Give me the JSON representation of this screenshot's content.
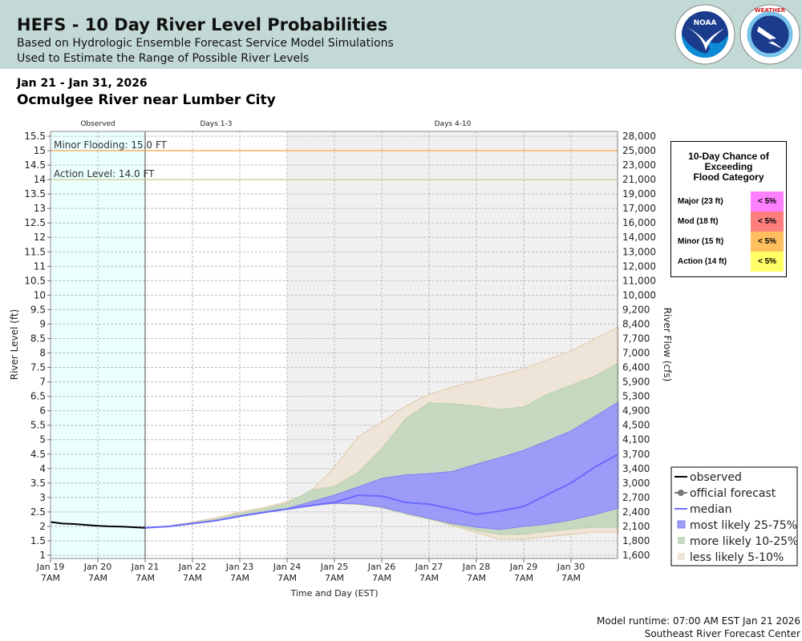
{
  "header": {
    "title": "HEFS - 10 Day River Level Probabilities",
    "line1": "Based on Hydrologic Ensemble Forecast Service Model Simulations",
    "line2": "Used to Estimate the Range of Possible River Levels",
    "logos": [
      "NOAA",
      "NATIONAL WEATHER SERVICE"
    ]
  },
  "date_range": "Jan 21 - Jan 31, 2026",
  "location": "Ocmulgee River near Lumber City",
  "footer": {
    "runtime": "Model runtime: 07:00 AM EST Jan 21 2026",
    "center": "Southeast River Forecast Center"
  },
  "flood_box": {
    "title": [
      "10-Day Chance of",
      "Exceeding",
      "Flood Category"
    ],
    "rows": [
      {
        "label": "Major (23 ft)",
        "value": "< 5%",
        "color": "#ff80ff"
      },
      {
        "label": "Mod (18 ft)",
        "value": "< 5%",
        "color": "#ff7f7f"
      },
      {
        "label": "Minor (15 ft)",
        "value": "< 5%",
        "color": "#ffbf5f"
      },
      {
        "label": "Action (14 ft)",
        "value": "< 5%",
        "color": "#ffff66"
      }
    ]
  },
  "chart_data": {
    "type": "area",
    "xlabel": "Time and Day (EST)",
    "ylabel": "River Level (ft)",
    "y2label": "River Flow (cfs)",
    "ylim": [
      1.0,
      15.5
    ],
    "xlim": [
      "2026-01-19T07",
      "2026-01-31T07"
    ],
    "grid": true,
    "legend": [
      {
        "label": "observed",
        "kind": "line",
        "color": "#000000"
      },
      {
        "label": "official forecast",
        "kind": "dotline",
        "color": "#777777"
      },
      {
        "label": "median",
        "kind": "line",
        "color": "#7070ff"
      },
      {
        "label": "most likely 25-75%",
        "kind": "box",
        "color": "#9c9cf8"
      },
      {
        "label": "more likely 10-25%",
        "kind": "box",
        "color": "#c6d8c0"
      },
      {
        "label": "less likely 5-10%",
        "kind": "box",
        "color": "#eee4d8"
      }
    ],
    "periods": [
      {
        "label": "Observed",
        "start": "2026-01-19T07",
        "end": "2026-01-21T07",
        "color": "#ebffff"
      },
      {
        "label": "Days 1-3",
        "start": "2026-01-21T07",
        "end": "2026-01-24T07",
        "color": "#ffffff"
      },
      {
        "label": "Days 4-10",
        "start": "2026-01-24T07",
        "end": "2026-01-31T07",
        "color": "#f0f0f0"
      }
    ],
    "yticks": [
      15.5,
      15.0,
      14.5,
      14.0,
      13.5,
      13.0,
      12.5,
      12.0,
      11.5,
      11.0,
      10.5,
      10.0,
      9.5,
      9.0,
      8.5,
      8.0,
      7.5,
      7.0,
      6.5,
      6.0,
      5.5,
      5.0,
      4.5,
      4.0,
      3.5,
      3.0,
      2.5,
      2.0,
      1.5,
      1.0
    ],
    "y2ticks": [
      "28,000",
      "25,000",
      "23,000",
      "21,000",
      "19,000",
      "17,000",
      "16,000",
      "14,000",
      "13,000",
      "12,000",
      "11,000",
      "10,000",
      "9,200",
      "8,400",
      "7,700",
      "7,000",
      "6,400",
      "5,900",
      "5,300",
      "4,900",
      "4,500",
      "4,100",
      "3,700",
      "3,400",
      "3,000",
      "2,700",
      "2,400",
      "2,100",
      "1,800",
      "1,600"
    ],
    "xticks": [
      {
        "t": "2026-01-19T07",
        "l1": "Jan 19",
        "l2": "7AM"
      },
      {
        "t": "2026-01-20T07",
        "l1": "Jan 20",
        "l2": "7AM"
      },
      {
        "t": "2026-01-21T07",
        "l1": "Jan 21",
        "l2": "7AM"
      },
      {
        "t": "2026-01-22T07",
        "l1": "Jan 22",
        "l2": "7AM"
      },
      {
        "t": "2026-01-23T07",
        "l1": "Jan 23",
        "l2": "7AM"
      },
      {
        "t": "2026-01-24T07",
        "l1": "Jan 24",
        "l2": "7AM"
      },
      {
        "t": "2026-01-25T07",
        "l1": "Jan 25",
        "l2": "7AM"
      },
      {
        "t": "2026-01-26T07",
        "l1": "Jan 26",
        "l2": "7AM"
      },
      {
        "t": "2026-01-27T07",
        "l1": "Jan 27",
        "l2": "7AM"
      },
      {
        "t": "2026-01-28T07",
        "l1": "Jan 28",
        "l2": "7AM"
      },
      {
        "t": "2026-01-29T07",
        "l1": "Jan 29",
        "l2": "7AM"
      },
      {
        "t": "2026-01-30T07",
        "l1": "Jan 30",
        "l2": "7AM"
      }
    ],
    "thresholds": [
      {
        "label": "Minor Flooding: 15.0 FT",
        "value": 15.0,
        "color": "#ffa040"
      },
      {
        "label": "Action Level: 14.0 FT",
        "value": 14.0,
        "color": "#cccc88"
      }
    ],
    "observed": {
      "t": [
        "2026-01-19T07",
        "2026-01-19T13",
        "2026-01-19T19",
        "2026-01-20T01",
        "2026-01-20T07",
        "2026-01-20T13",
        "2026-01-20T19",
        "2026-01-21T01",
        "2026-01-21T07"
      ],
      "v": [
        2.15,
        2.1,
        2.08,
        2.05,
        2.02,
        2.0,
        1.99,
        1.97,
        1.95
      ]
    },
    "forecast_t": [
      "2026-01-21T07",
      "2026-01-21T19",
      "2026-01-22T07",
      "2026-01-22T19",
      "2026-01-23T07",
      "2026-01-23T19",
      "2026-01-24T07",
      "2026-01-24T19",
      "2026-01-25T07",
      "2026-01-25T19",
      "2026-01-26T07",
      "2026-01-26T19",
      "2026-01-27T07",
      "2026-01-27T19",
      "2026-01-28T07",
      "2026-01-28T19",
      "2026-01-29T07",
      "2026-01-29T19",
      "2026-01-30T07",
      "2026-01-30T19",
      "2026-01-31T07"
    ],
    "median": [
      1.95,
      2.0,
      2.1,
      2.2,
      2.35,
      2.48,
      2.6,
      2.72,
      2.83,
      3.08,
      3.05,
      2.83,
      2.77,
      2.6,
      2.41,
      2.53,
      2.69,
      3.1,
      3.5,
      4.05,
      4.5
    ],
    "p5": [
      1.95,
      2.0,
      2.1,
      2.2,
      2.35,
      2.47,
      2.6,
      2.72,
      2.8,
      2.76,
      2.65,
      2.43,
      2.25,
      2.03,
      1.78,
      1.56,
      1.55,
      1.64,
      1.72,
      1.8,
      1.8
    ],
    "p10": [
      1.95,
      2.0,
      2.1,
      2.2,
      2.35,
      2.47,
      2.6,
      2.72,
      2.8,
      2.76,
      2.65,
      2.43,
      2.25,
      2.05,
      1.86,
      1.72,
      1.72,
      1.83,
      1.91,
      1.97,
      1.97
    ],
    "p25": [
      1.95,
      2.0,
      2.1,
      2.2,
      2.35,
      2.47,
      2.6,
      2.72,
      2.8,
      2.78,
      2.67,
      2.47,
      2.28,
      2.1,
      1.97,
      1.89,
      2.0,
      2.08,
      2.22,
      2.41,
      2.63
    ],
    "p75": [
      1.95,
      2.0,
      2.1,
      2.2,
      2.37,
      2.5,
      2.62,
      2.85,
      3.08,
      3.36,
      3.66,
      3.78,
      3.83,
      3.9,
      4.15,
      4.38,
      4.63,
      4.96,
      5.3,
      5.8,
      6.3
    ],
    "p90": [
      1.95,
      2.0,
      2.12,
      2.25,
      2.45,
      2.6,
      2.8,
      3.25,
      3.38,
      3.86,
      4.69,
      5.71,
      6.27,
      6.24,
      6.16,
      6.05,
      6.13,
      6.57,
      6.88,
      7.2,
      7.65
    ],
    "p95": [
      1.95,
      2.02,
      2.15,
      2.3,
      2.5,
      2.65,
      2.85,
      3.2,
      4.05,
      5.1,
      5.6,
      6.16,
      6.57,
      6.82,
      7.05,
      7.24,
      7.46,
      7.77,
      8.07,
      8.49,
      8.9
    ]
  }
}
